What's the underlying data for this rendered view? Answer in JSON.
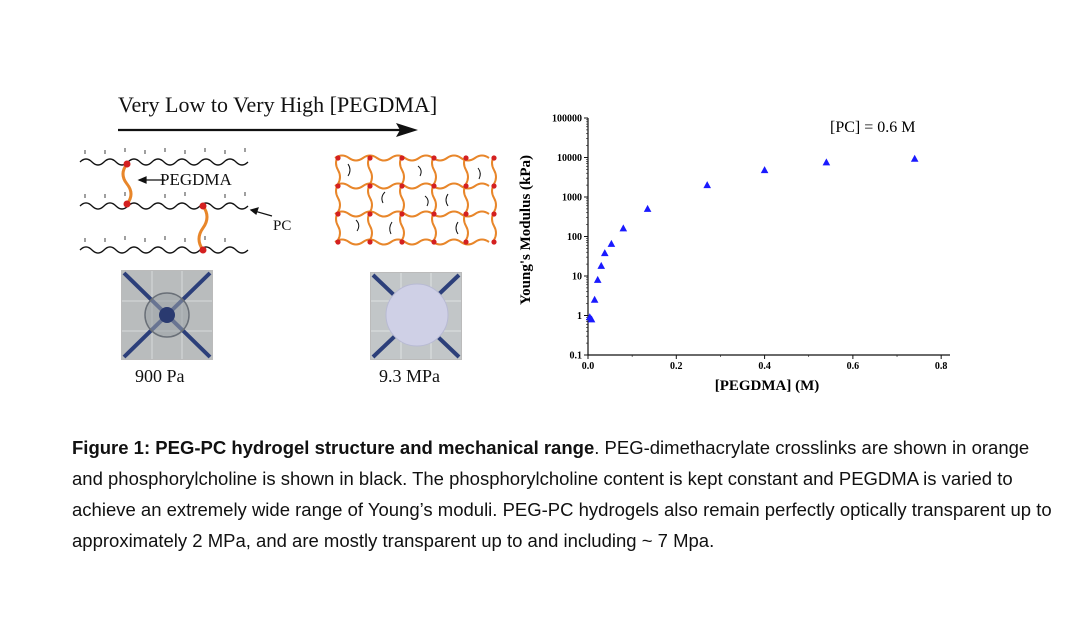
{
  "schematic": {
    "arrow_title": "Very Low to Very High [PEGDMA]",
    "label_pegdma": "PEGDMA",
    "label_pc": "PC",
    "left_modulus": "900 Pa",
    "right_modulus": "9.3 MPa"
  },
  "colors": {
    "crosslink": "#e8862a",
    "node": "#d42020",
    "chain": "#111111",
    "marker": "#1a1aff"
  },
  "caption": {
    "bold": "Figure 1: PEG-PC hydrogel structure and mechanical range",
    "text": ". PEG-dimethacrylate crosslinks are shown in orange and phosphorylcholine is shown in black. The phosphorylcholine content is kept constant and PEGDMA is varied to achieve an extremely wide range of Young’s moduli. PEG-PC hydrogels also remain perfectly optically transparent up to approximately 2 MPa, and are mostly transparent up to and including ~ 7 Mpa."
  },
  "chart_data": {
    "type": "scatter",
    "xlabel": "[PEGDMA] (M)",
    "ylabel": "Young's Modulus (kPa)",
    "annotation": "[PC] = 0.6 M",
    "xlim": [
      0,
      0.82
    ],
    "ylim": [
      0.1,
      100000
    ],
    "yscale": "log",
    "x_ticks": [
      "0.0",
      "0.2",
      "0.4",
      "0.6",
      "0.8"
    ],
    "x_tick_values": [
      0,
      0.2,
      0.4,
      0.6,
      0.8
    ],
    "y_ticks": [
      "0.1",
      "1",
      "10",
      "100",
      "1000",
      "10000",
      "100000"
    ],
    "y_tick_values": [
      0.1,
      1,
      10,
      100,
      1000,
      10000,
      100000
    ],
    "marker": "triangle",
    "series": [
      {
        "x": [
          0.004,
          0.008,
          0.015,
          0.022,
          0.03,
          0.038,
          0.053,
          0.08,
          0.135,
          0.27,
          0.4,
          0.54,
          0.74
        ],
        "y": [
          0.9,
          0.8,
          2.5,
          8,
          18,
          38,
          65,
          160,
          500,
          2000,
          4800,
          7500,
          9300
        ]
      }
    ]
  }
}
